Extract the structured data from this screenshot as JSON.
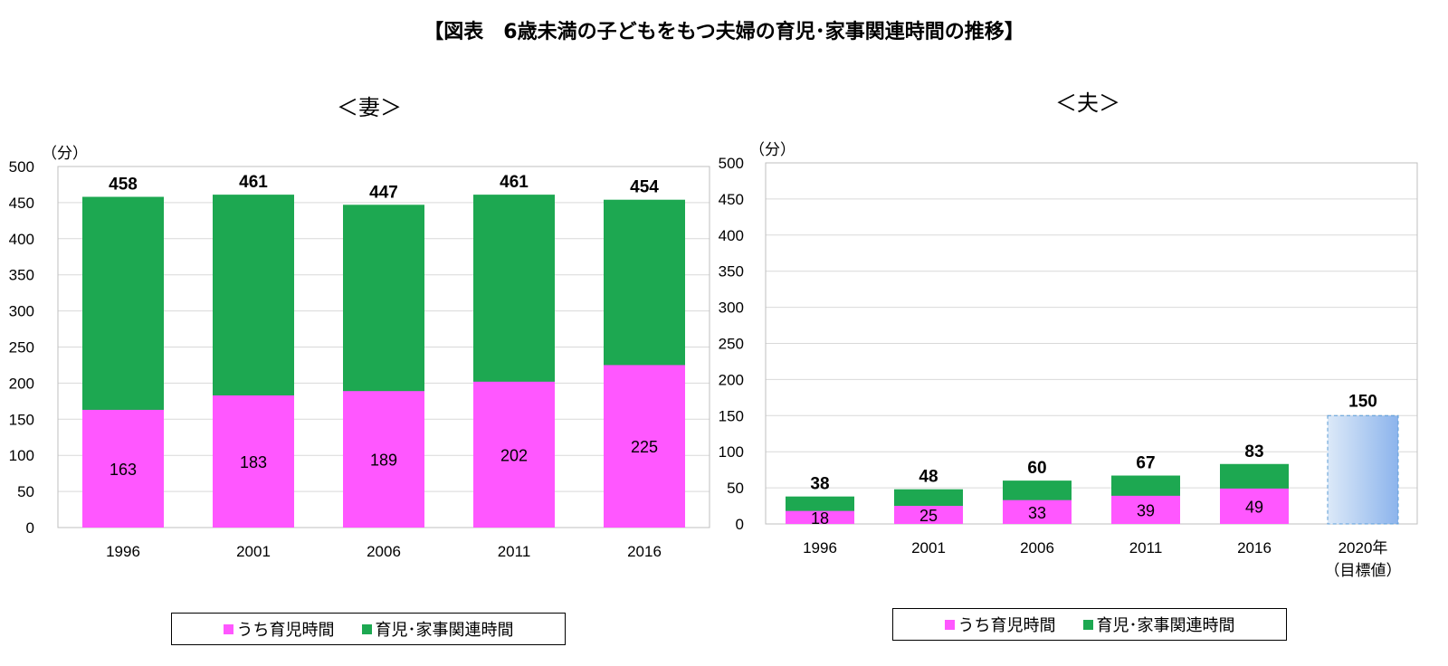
{
  "title": "【図表　6歳未満の子どもをもつ夫婦の育児･家事関連時間の推移】",
  "colors": {
    "childcare": "#FF57FF",
    "housework": "#1DA851",
    "target_light": "#DCE9F8",
    "target_dark": "#8CB4EC",
    "target_border": "#5B9BD5"
  },
  "legend": {
    "childcare_label": "うち育児時間",
    "total_label": "育児･家事関連時間"
  },
  "chart_data": [
    {
      "type": "bar",
      "subtitle": "＜妻＞",
      "unit_label": "（分）",
      "categories": [
        "1996",
        "2001",
        "2006",
        "2011",
        "2016"
      ],
      "series": [
        {
          "name": "うち育児時間",
          "values": [
            163,
            183,
            189,
            202,
            225
          ]
        },
        {
          "name": "育児･家事関連時間",
          "values": [
            458,
            461,
            447,
            461,
            454
          ]
        }
      ],
      "ylim": [
        0,
        500
      ],
      "yticks": [
        0,
        50,
        100,
        150,
        200,
        250,
        300,
        350,
        400,
        450,
        500
      ],
      "grid": true,
      "legend_position": "bottom"
    },
    {
      "type": "bar",
      "subtitle": "＜夫＞",
      "unit_label": "（分）",
      "categories": [
        "1996",
        "2001",
        "2006",
        "2011",
        "2016"
      ],
      "series": [
        {
          "name": "うち育児時間",
          "values": [
            18,
            25,
            33,
            39,
            49
          ]
        },
        {
          "name": "育児･家事関連時間",
          "values": [
            38,
            48,
            60,
            67,
            83
          ]
        }
      ],
      "target": {
        "label": "2020年",
        "sublabel": "（目標値）",
        "value": 150
      },
      "ylim": [
        0,
        500
      ],
      "yticks": [
        0,
        50,
        100,
        150,
        200,
        250,
        300,
        350,
        400,
        450,
        500
      ],
      "grid": true,
      "legend_position": "bottom"
    }
  ]
}
